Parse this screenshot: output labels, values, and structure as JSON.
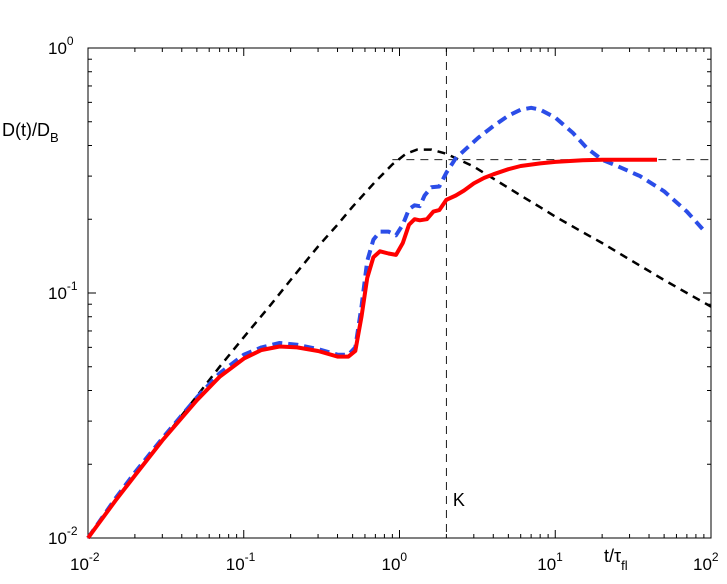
{
  "chart_data": {
    "type": "line",
    "title": "",
    "xlabel": {
      "main": "t/τ",
      "sub": "fl"
    },
    "ylabel": {
      "main": "D(t)/D",
      "sub": "B"
    },
    "xscale": "log",
    "yscale": "log",
    "xlim": [
      0.01,
      100
    ],
    "ylim": [
      0.01,
      1
    ],
    "grid": false,
    "legend": "none",
    "x_ticks": [
      {
        "base": "10",
        "exp": "-2",
        "value": 0.01
      },
      {
        "base": "10",
        "exp": "-1",
        "value": 0.1
      },
      {
        "base": "10",
        "exp": "0",
        "value": 1
      },
      {
        "base": "10",
        "exp": "1",
        "value": 10
      },
      {
        "base": "10",
        "exp": "2",
        "value": 100
      }
    ],
    "y_ticks": [
      {
        "base": "10",
        "exp": "-2",
        "value": 0.01
      },
      {
        "base": "10",
        "exp": "-1",
        "value": 0.1
      },
      {
        "base": "10",
        "exp": "0",
        "value": 1
      }
    ],
    "annotations": [
      {
        "text": "K",
        "x": 2.2,
        "y": 0.0135
      }
    ],
    "reference_lines": [
      {
        "orientation": "vertical",
        "x": 2.0,
        "color": "#000000",
        "style": "dashed"
      },
      {
        "orientation": "horizontal",
        "y": 0.35,
        "x_from": 0.9,
        "x_to": 100,
        "color": "#000000",
        "style": "dashed"
      }
    ],
    "series": [
      {
        "color": "#000000",
        "style": "dashed",
        "width": 2.5,
        "points": [
          [
            0.01,
            0.01
          ],
          [
            0.02,
            0.018
          ],
          [
            0.03,
            0.025
          ],
          [
            0.05,
            0.038
          ],
          [
            0.07,
            0.05
          ],
          [
            0.1,
            0.066
          ],
          [
            0.15,
            0.09
          ],
          [
            0.2,
            0.113
          ],
          [
            0.3,
            0.155
          ],
          [
            0.4,
            0.19
          ],
          [
            0.5,
            0.225
          ],
          [
            0.7,
            0.285
          ],
          [
            0.9,
            0.335
          ],
          [
            1.1,
            0.37
          ],
          [
            1.3,
            0.385
          ],
          [
            1.6,
            0.385
          ],
          [
            2.0,
            0.37
          ],
          [
            3.0,
            0.328
          ],
          [
            4.0,
            0.293
          ],
          [
            6.0,
            0.25
          ],
          [
            8.0,
            0.224
          ],
          [
            10,
            0.205
          ],
          [
            15,
            0.177
          ],
          [
            20,
            0.16
          ],
          [
            30,
            0.137
          ],
          [
            50,
            0.113
          ],
          [
            70,
            0.1
          ],
          [
            100,
            0.088
          ]
        ]
      },
      {
        "color": "#2b4de8",
        "style": "dashed",
        "width": 4,
        "points": [
          [
            0.01,
            0.01
          ],
          [
            0.015,
            0.0145
          ],
          [
            0.02,
            0.0185
          ],
          [
            0.03,
            0.0255
          ],
          [
            0.05,
            0.0375
          ],
          [
            0.07,
            0.047
          ],
          [
            0.1,
            0.056
          ],
          [
            0.13,
            0.06
          ],
          [
            0.17,
            0.0625
          ],
          [
            0.22,
            0.0615
          ],
          [
            0.3,
            0.059
          ],
          [
            0.4,
            0.056
          ],
          [
            0.47,
            0.056
          ],
          [
            0.52,
            0.06
          ],
          [
            0.57,
            0.088
          ],
          [
            0.62,
            0.135
          ],
          [
            0.68,
            0.165
          ],
          [
            0.75,
            0.178
          ],
          [
            0.85,
            0.178
          ],
          [
            0.95,
            0.172
          ],
          [
            1.05,
            0.19
          ],
          [
            1.15,
            0.22
          ],
          [
            1.25,
            0.228
          ],
          [
            1.35,
            0.226
          ],
          [
            1.45,
            0.25
          ],
          [
            1.6,
            0.27
          ],
          [
            1.8,
            0.272
          ],
          [
            2.0,
            0.31
          ],
          [
            2.3,
            0.355
          ],
          [
            2.7,
            0.39
          ],
          [
            3.2,
            0.43
          ],
          [
            4.0,
            0.48
          ],
          [
            5.0,
            0.53
          ],
          [
            6.0,
            0.56
          ],
          [
            7.0,
            0.57
          ],
          [
            8.0,
            0.56
          ],
          [
            10,
            0.52
          ],
          [
            13,
            0.45
          ],
          [
            16,
            0.39
          ],
          [
            20,
            0.35
          ],
          [
            25,
            0.33
          ],
          [
            35,
            0.3
          ],
          [
            50,
            0.26
          ],
          [
            70,
            0.215
          ],
          [
            90,
            0.18
          ]
        ]
      },
      {
        "color": "#ff0000",
        "style": "solid",
        "width": 4,
        "points": [
          [
            0.01,
            0.01
          ],
          [
            0.015,
            0.0142
          ],
          [
            0.02,
            0.018
          ],
          [
            0.03,
            0.025
          ],
          [
            0.05,
            0.0365
          ],
          [
            0.07,
            0.0455
          ],
          [
            0.1,
            0.054
          ],
          [
            0.13,
            0.0585
          ],
          [
            0.17,
            0.0605
          ],
          [
            0.22,
            0.06
          ],
          [
            0.3,
            0.058
          ],
          [
            0.4,
            0.055
          ],
          [
            0.47,
            0.055
          ],
          [
            0.52,
            0.058
          ],
          [
            0.57,
            0.08
          ],
          [
            0.62,
            0.115
          ],
          [
            0.68,
            0.14
          ],
          [
            0.75,
            0.148
          ],
          [
            0.85,
            0.145
          ],
          [
            0.95,
            0.143
          ],
          [
            1.05,
            0.16
          ],
          [
            1.15,
            0.19
          ],
          [
            1.25,
            0.2
          ],
          [
            1.35,
            0.198
          ],
          [
            1.5,
            0.2
          ],
          [
            1.65,
            0.215
          ],
          [
            1.8,
            0.218
          ],
          [
            2.0,
            0.24
          ],
          [
            2.3,
            0.25
          ],
          [
            2.6,
            0.262
          ],
          [
            3.0,
            0.28
          ],
          [
            3.5,
            0.295
          ],
          [
            4.0,
            0.305
          ],
          [
            5.0,
            0.32
          ],
          [
            6.0,
            0.33
          ],
          [
            8.0,
            0.338
          ],
          [
            10,
            0.343
          ],
          [
            15,
            0.348
          ],
          [
            20,
            0.35
          ],
          [
            30,
            0.35
          ],
          [
            45,
            0.35
          ]
        ]
      }
    ]
  }
}
